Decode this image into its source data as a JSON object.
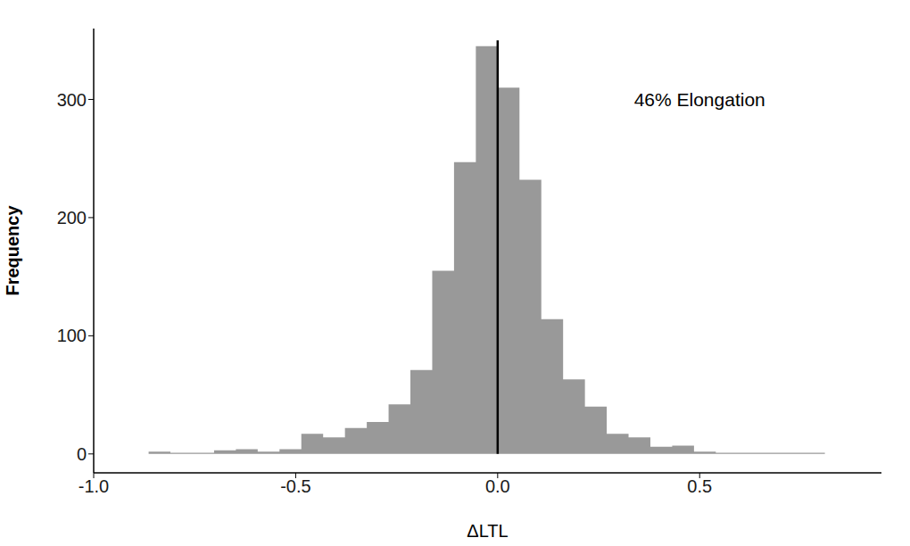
{
  "chart_data": {
    "type": "histogram",
    "x_label": "ΔLTL",
    "y_label": "Frequency",
    "bins": [
      -0.864,
      -0.81,
      -0.756,
      -0.702,
      -0.648,
      -0.594,
      -0.54,
      -0.486,
      -0.432,
      -0.378,
      -0.324,
      -0.27,
      -0.216,
      -0.162,
      -0.108,
      -0.054,
      0,
      0.054,
      0.108,
      0.162,
      0.216,
      0.27,
      0.324,
      0.378,
      0.432,
      0.486,
      0.54,
      0.594,
      0.648,
      0.702,
      0.756,
      0.81
    ],
    "values": [
      2,
      1,
      1,
      3,
      4,
      2,
      4,
      17,
      14,
      22,
      27,
      42,
      71,
      155,
      247,
      345,
      310,
      232,
      114,
      63,
      40,
      17,
      14,
      6,
      7,
      2,
      1,
      1,
      1,
      1,
      1
    ],
    "color": "#999999",
    "xlim": [
      -1.0,
      0.95
    ],
    "xticks": [
      {
        "value": -1.0,
        "label": "-1.0"
      },
      -0.5,
      {
        "value": 0,
        "label": "0.0"
      },
      0.5
    ],
    "ylim": [
      -16,
      360
    ],
    "yticks": [
      0,
      100,
      200,
      300
    ],
    "grid": false,
    "vline": {
      "x": 0,
      "ymin": 0,
      "ymax": 350,
      "color": "#000000"
    },
    "annotations": [
      {
        "text": "46% Elongation",
        "x": 0.5,
        "y": 300
      }
    ]
  }
}
